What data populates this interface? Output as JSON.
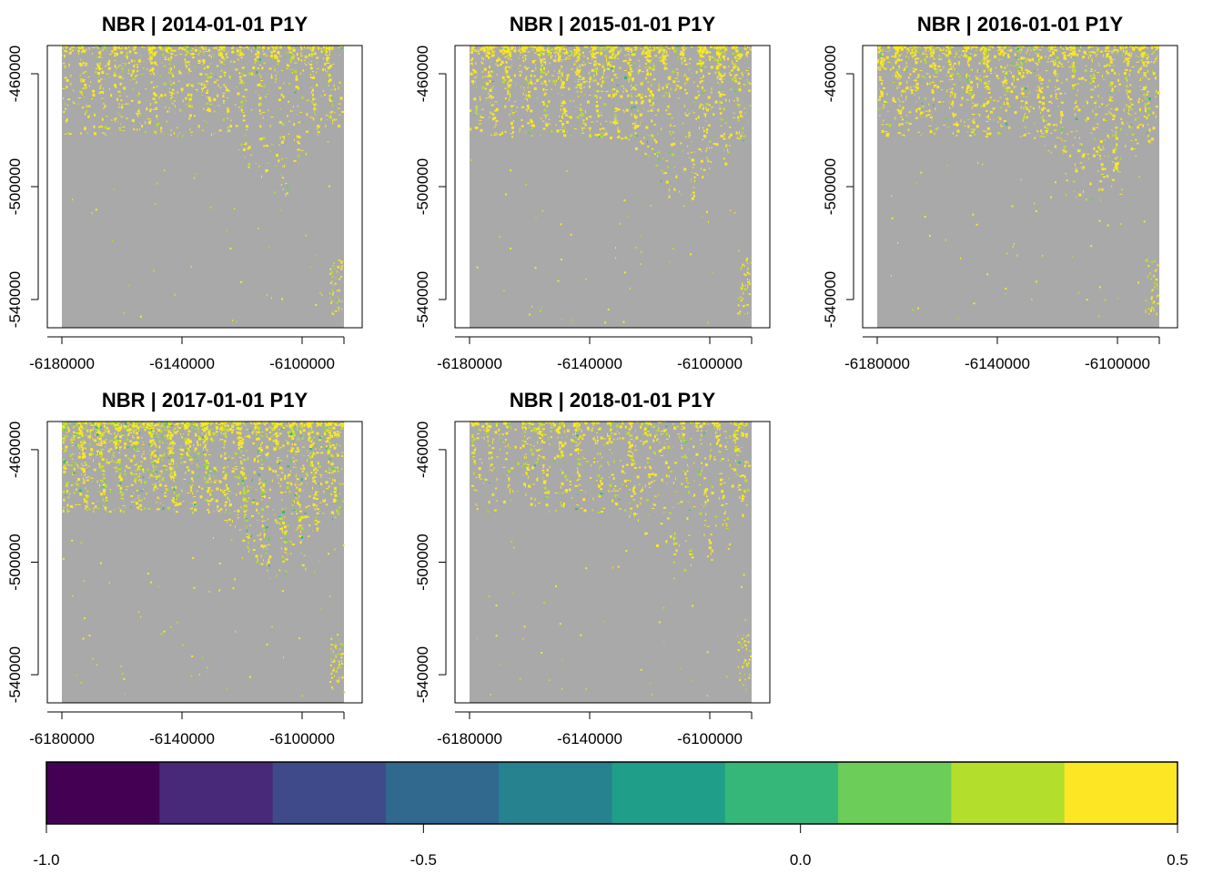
{
  "chart_data": [
    {
      "type": "heatmap",
      "title": "NBR | 2014-01-01 P1Y",
      "x_ticks": [
        -6180000,
        -6140000,
        -6100000
      ],
      "y_ticks": [
        -460000,
        -500000,
        -540000
      ],
      "x_tick_labels": [
        "-6180000",
        "-6140000",
        "-6100000"
      ],
      "y_tick_labels": [
        "-460000",
        "-500000",
        "-540000"
      ],
      "xlim": [
        -6180000,
        -6080000
      ],
      "ylim": [
        -550000,
        -450000
      ],
      "background_value": 0.0,
      "signal_intensity": 0.5,
      "green_fraction": 0.03
    },
    {
      "type": "heatmap",
      "title": "NBR | 2015-01-01 P1Y",
      "x_ticks": [
        -6180000,
        -6140000,
        -6100000
      ],
      "y_ticks": [
        -460000,
        -500000,
        -540000
      ],
      "x_tick_labels": [
        "-6180000",
        "-6140000",
        "-6100000"
      ],
      "y_tick_labels": [
        "-460000",
        "-500000",
        "-540000"
      ],
      "xlim": [
        -6180000,
        -6080000
      ],
      "ylim": [
        -550000,
        -450000
      ],
      "background_value": 0.0,
      "signal_intensity": 0.75,
      "green_fraction": 0.05
    },
    {
      "type": "heatmap",
      "title": "NBR | 2016-01-01 P1Y",
      "x_ticks": [
        -6180000,
        -6140000,
        -6100000
      ],
      "y_ticks": [
        -460000,
        -500000,
        -540000
      ],
      "x_tick_labels": [
        "-6180000",
        "-6140000",
        "-6100000"
      ],
      "y_tick_labels": [
        "-460000",
        "-500000",
        "-540000"
      ],
      "xlim": [
        -6180000,
        -6080000
      ],
      "ylim": [
        -550000,
        -450000
      ],
      "background_value": 0.0,
      "signal_intensity": 0.7,
      "green_fraction": 0.05
    },
    {
      "type": "heatmap",
      "title": "NBR | 2017-01-01 P1Y",
      "x_ticks": [
        -6180000,
        -6140000,
        -6100000
      ],
      "y_ticks": [
        -460000,
        -500000,
        -540000
      ],
      "x_tick_labels": [
        "-6180000",
        "-6140000",
        "-6100000"
      ],
      "y_tick_labels": [
        "-460000",
        "-500000",
        "-540000"
      ],
      "xlim": [
        -6180000,
        -6080000
      ],
      "ylim": [
        -550000,
        -450000
      ],
      "background_value": 0.0,
      "signal_intensity": 1.0,
      "green_fraction": 0.15
    },
    {
      "type": "heatmap",
      "title": "NBR | 2018-01-01 P1Y",
      "x_ticks": [
        -6180000,
        -6140000,
        -6100000
      ],
      "y_ticks": [
        -460000,
        -500000,
        -540000
      ],
      "x_tick_labels": [
        "-6180000",
        "-6140000",
        "-6100000"
      ],
      "y_tick_labels": [
        "-460000",
        "-500000",
        "-540000"
      ],
      "xlim": [
        -6180000,
        -6080000
      ],
      "ylim": [
        -550000,
        -450000
      ],
      "background_value": 0.0,
      "signal_intensity": 0.45,
      "green_fraction": 0.06
    }
  ],
  "legend": {
    "range": [
      -1.0,
      0.5
    ],
    "tick_values": [
      -1.0,
      -0.5,
      0.0,
      0.5
    ],
    "tick_labels": [
      "-1.0",
      "-0.5",
      "0.0",
      "0.5"
    ],
    "colors": [
      "#440154",
      "#482878",
      "#3E4A89",
      "#31688E",
      "#26828E",
      "#1F9E89",
      "#35B779",
      "#6DCD59",
      "#B4DE2C",
      "#FDE725"
    ]
  },
  "colors": {
    "background_raster": "#A9A9A9",
    "yellow": "#FDE725",
    "yellow_green": "#B4DE2C",
    "green": "#6DCD59",
    "teal_green": "#35B779",
    "teal": "#1F9E89"
  }
}
